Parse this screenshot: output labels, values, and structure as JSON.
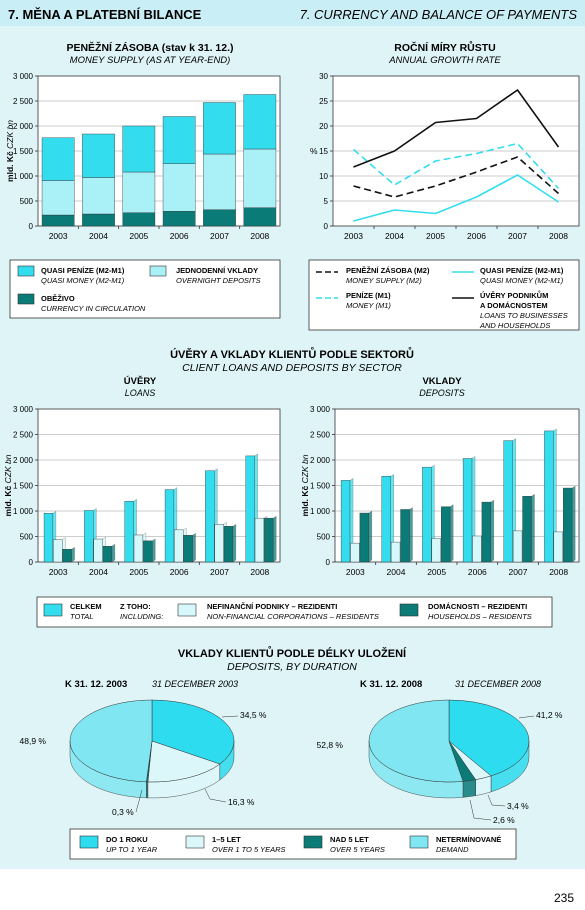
{
  "header": {
    "title_cz": "7. MĚNA A PLATEBNÍ BILANCE",
    "title_en": "7. CURRENCY AND BALANCE OF PAYMENTS"
  },
  "page_number": "235",
  "colors": {
    "header_bg": "#c9eef5",
    "panel_bg": "#dff4f7",
    "cyan": "#33ddee",
    "light_cyan": "#a9f0f7",
    "pale_cyan": "#d6f8fb",
    "dark_teal": "#0b7b78",
    "pie_cyan": "#2ddcee",
    "pie_pale": "#dcf7fa",
    "pie_light": "#7fe6f2"
  },
  "ylabel": {
    "cz": "mld. Kč",
    "en": "CZK bn"
  },
  "growth_ylabel": "%",
  "section_loans": {
    "title_cz": "ÚVĚRY A VKLADY KLIENTŮ PODLE SEKTORŮ",
    "title_en": "CLIENT LOANS AND DEPOSITS BY SECTOR"
  },
  "section_deposits": {
    "title_cz": "VKLADY KLIENTŮ PODLE DÉLKY ULOŽENÍ",
    "title_en": "DEPOSITS, BY DURATION"
  },
  "chart_data": [
    {
      "id": "money",
      "type": "bar",
      "stacked": true,
      "title": "PENĚŽNÍ ZÁSOBA (stav k 31. 12.)",
      "subtitle": "MONEY SUPPLY (AS AT YEAR-END)",
      "categories": [
        "2003",
        "2004",
        "2005",
        "2006",
        "2007",
        "2008"
      ],
      "ylim": [
        0,
        3000
      ],
      "yticks": [
        0,
        500,
        1000,
        1500,
        2000,
        2500,
        3000
      ],
      "ytick_labels": [
        "0",
        "500",
        "1 000",
        "1 500",
        "2 000",
        "2 500",
        "3 000"
      ],
      "series": [
        {
          "name": "OBĚŽIVO",
          "name_en": "CURRENCY IN CIRCULATION",
          "color": "#0b7b78",
          "values": [
            220,
            240,
            265,
            295,
            325,
            365
          ]
        },
        {
          "name": "JEDNODENNÍ VKLADY",
          "name_en": "OVERNIGHT DEPOSITS",
          "color": "#a9f0f7",
          "values": [
            690,
            730,
            815,
            950,
            1115,
            1175
          ]
        },
        {
          "name": "QUASI PENÍZE (M2-M1)",
          "name_en": "QUASI MONEY (M2-M1)",
          "color": "#33ddee",
          "values": [
            855,
            870,
            920,
            945,
            1030,
            1090
          ]
        }
      ],
      "legend_order": [
        2,
        1,
        0
      ]
    },
    {
      "id": "growth",
      "type": "line",
      "title": "ROČNÍ MÍRY RŮSTU",
      "subtitle": "ANNUAL GROWTH RATE",
      "categories": [
        "2003",
        "2004",
        "2005",
        "2006",
        "2007",
        "2008"
      ],
      "ylim": [
        0,
        30
      ],
      "yticks": [
        0,
        5,
        10,
        15,
        20,
        25,
        30
      ],
      "ytick_labels": [
        "0",
        "5",
        "10",
        "15",
        "20",
        "25",
        "30"
      ],
      "series": [
        {
          "name": "PENĚŽNÍ ZÁSOBA (M2)",
          "name_en": "MONEY SUPPLY (M2)",
          "color": "#111111",
          "dash": true,
          "values": [
            8.0,
            5.8,
            8.0,
            10.8,
            13.8,
            6.5
          ]
        },
        {
          "name": "PENÍZE (M1)",
          "name_en": "MONEY (M1)",
          "color": "#33ddee",
          "dash": true,
          "values": [
            15.3,
            8.2,
            13.0,
            14.5,
            16.5,
            7.5
          ]
        },
        {
          "name": "QUASI PENÍZE (M2-M1)",
          "name_en": "QUASI MONEY (M2-M1)",
          "color": "#33ddee",
          "dash": false,
          "values": [
            1.0,
            3.2,
            2.5,
            5.8,
            10.2,
            4.8
          ]
        },
        {
          "name": "ÚVĚRY PODNIKŮM",
          "name2": "A DOMÁCNOSTEM",
          "name_en": "LOANS TO BUSINESSES",
          "name_en2": "AND HOUSEHOLDS",
          "color": "#111111",
          "dash": false,
          "values": [
            11.8,
            15.0,
            20.7,
            21.5,
            27.2,
            15.8
          ]
        }
      ]
    },
    {
      "id": "loans",
      "type": "bar",
      "title": "ÚVĚRY",
      "subtitle": "LOANS",
      "categories": [
        "2003",
        "2004",
        "2005",
        "2006",
        "2007",
        "2008"
      ],
      "ylim": [
        0,
        3000
      ],
      "yticks": [
        0,
        500,
        1000,
        1500,
        2000,
        2500,
        3000
      ],
      "ytick_labels": [
        "0",
        "500",
        "1 000",
        "1 500",
        "2 000",
        "2 500",
        "3 000"
      ],
      "series": [
        {
          "name": "CELKEM",
          "name_en": "TOTAL",
          "color": "#33ddee",
          "values": [
            955,
            1010,
            1190,
            1420,
            1790,
            2080
          ]
        },
        {
          "name": "NEFINANČNÍ PODNIKY – REZIDENTI",
          "name_en": "NON-FINANCIAL CORPORATIONS – RESIDENTS",
          "color": "#d6f8fb",
          "values": [
            440,
            450,
            530,
            630,
            740,
            860
          ]
        },
        {
          "name": "DOMÁCNOSTI – REZIDENTI",
          "name_en": "HOUSEHOLDS – RESIDENTS",
          "color": "#0b7b78",
          "values": [
            250,
            310,
            415,
            525,
            700,
            860
          ]
        }
      ]
    },
    {
      "id": "deposits",
      "type": "bar",
      "title": "VKLADY",
      "subtitle": "DEPOSITS",
      "categories": [
        "2003",
        "2004",
        "2005",
        "2006",
        "2007",
        "2008"
      ],
      "ylim": [
        0,
        3000
      ],
      "yticks": [
        0,
        500,
        1000,
        1500,
        2000,
        2500,
        3000
      ],
      "ytick_labels": [
        "0",
        "500",
        "1 000",
        "1 500",
        "2 000",
        "2 500",
        "3 000"
      ],
      "series": [
        {
          "name": "CELKEM",
          "name_en": "TOTAL",
          "color": "#33ddee",
          "values": [
            1600,
            1680,
            1860,
            2030,
            2380,
            2570
          ]
        },
        {
          "name": "NEFINANČNÍ PODNIKY – REZIDENTI",
          "name_en": "NON-FINANCIAL CORPORATIONS – RESIDENTS",
          "color": "#d6f8fb",
          "values": [
            370,
            390,
            460,
            510,
            610,
            590
          ]
        },
        {
          "name": "DOMÁCNOSTI – REZIDENTI",
          "name_en": "HOUSEHOLDS – RESIDENTS",
          "color": "#0b7b78",
          "values": [
            960,
            1030,
            1085,
            1175,
            1290,
            1450
          ]
        }
      ]
    },
    {
      "id": "pie2003",
      "type": "pie",
      "title": "K 31. 12. 2003",
      "subtitle": "31 DECEMBER 2003",
      "slices": [
        {
          "name": "DO 1 ROKU",
          "value": 34.5,
          "label": "34,5 %",
          "color": "#2ddcee"
        },
        {
          "name": "1–5 LET",
          "value": 16.3,
          "label": "16,3 %",
          "color": "#dcf7fa"
        },
        {
          "name": "NAD 5 LET",
          "value": 0.3,
          "label": "0,3 %",
          "color": "#0b7b78"
        },
        {
          "name": "NETERMÍNOVANÉ",
          "value": 48.9,
          "label": "48,9 %",
          "color": "#7fe6f2"
        }
      ]
    },
    {
      "id": "pie2008",
      "type": "pie",
      "title": "K 31. 12. 2008",
      "subtitle": "31 DECEMBER 2008",
      "slices": [
        {
          "name": "DO 1 ROKU",
          "value": 41.2,
          "label": "41,2 %",
          "color": "#2ddcee"
        },
        {
          "name": "1–5 LET",
          "value": 3.4,
          "label": "3,4 %",
          "color": "#dcf7fa"
        },
        {
          "name": "NAD 5 LET",
          "value": 2.6,
          "label": "2,6 %",
          "color": "#0b7b78"
        },
        {
          "name": "NETERMÍNOVANÉ",
          "value": 52.8,
          "label": "52,8 %",
          "color": "#7fe6f2"
        }
      ]
    }
  ],
  "legend_money": [
    {
      "name": "QUASI PENÍZE (M2-M1)",
      "name_en": "QUASI MONEY (M2-M1)",
      "color": "#33ddee"
    },
    {
      "name": "JEDNODENNÍ VKLADY",
      "name_en": "OVERNIGHT DEPOSITS",
      "color": "#a9f0f7"
    },
    {
      "name": "OBĚŽIVO",
      "name_en": "CURRENCY IN CIRCULATION",
      "color": "#0b7b78"
    }
  ],
  "legend_sector": {
    "total": {
      "name": "CELKEM",
      "name_en": "TOTAL",
      "color": "#33ddee"
    },
    "including": {
      "cz": "Z TOHO:",
      "en": "INCLUDING:"
    },
    "nonfin": {
      "name": "NEFINANČNÍ PODNIKY – REZIDENTI",
      "name_en": "NON-FINANCIAL CORPORATIONS – RESIDENTS",
      "color": "#d6f8fb"
    },
    "households": {
      "name": "DOMÁCNOSTI – REZIDENTI",
      "name_en": "HOUSEHOLDS – RESIDENTS",
      "color": "#0b7b78"
    }
  },
  "legend_duration": [
    {
      "name": "DO 1 ROKU",
      "name_en": "UP TO 1 YEAR",
      "color": "#2ddcee"
    },
    {
      "name": "1–5 LET",
      "name_en": "OVER 1 TO 5 YEARS",
      "color": "#dcf7fa"
    },
    {
      "name": "NAD 5 LET",
      "name_en": "OVER 5 YEARS",
      "color": "#0b7b78"
    },
    {
      "name": "NETERMÍNOVANÉ",
      "name_en": "DEMAND",
      "color": "#7fe6f2"
    }
  ]
}
